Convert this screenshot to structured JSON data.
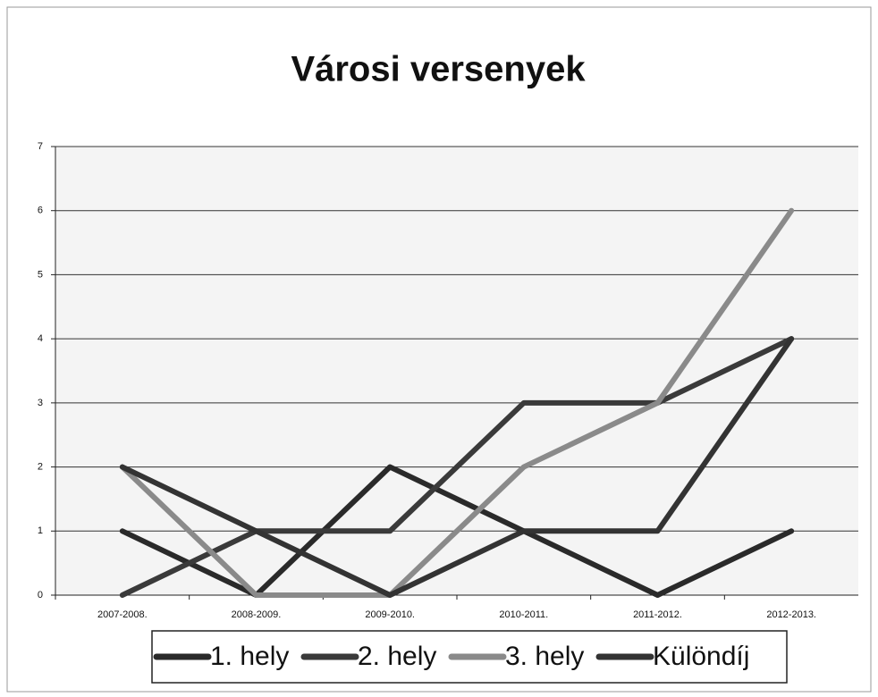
{
  "chart_data": {
    "type": "line",
    "title": "Városi versenyek",
    "categories": [
      "2007-2008.",
      "2008-2009.",
      "2009-2010.",
      "2010-2011.",
      "2011-2012.",
      "2012-2013."
    ],
    "series": [
      {
        "name": "1. hely",
        "color": "#2a2a2a",
        "values": [
          1,
          0,
          2,
          1,
          0,
          1
        ]
      },
      {
        "name": "2. hely",
        "color": "#3a3a3a",
        "values": [
          0,
          1,
          1,
          3,
          3,
          4
        ]
      },
      {
        "name": "3. hely",
        "color": "#8a8a8a",
        "values": [
          2,
          0,
          0,
          2,
          3,
          6
        ]
      },
      {
        "name": "Különdíj",
        "color": "#333333",
        "values": [
          2,
          1,
          0,
          1,
          1,
          4
        ]
      }
    ],
    "ylim": [
      0,
      7
    ],
    "yticks": [
      0,
      1,
      2,
      3,
      4,
      5,
      6,
      7
    ],
    "grid": true,
    "legend": "bottom"
  }
}
